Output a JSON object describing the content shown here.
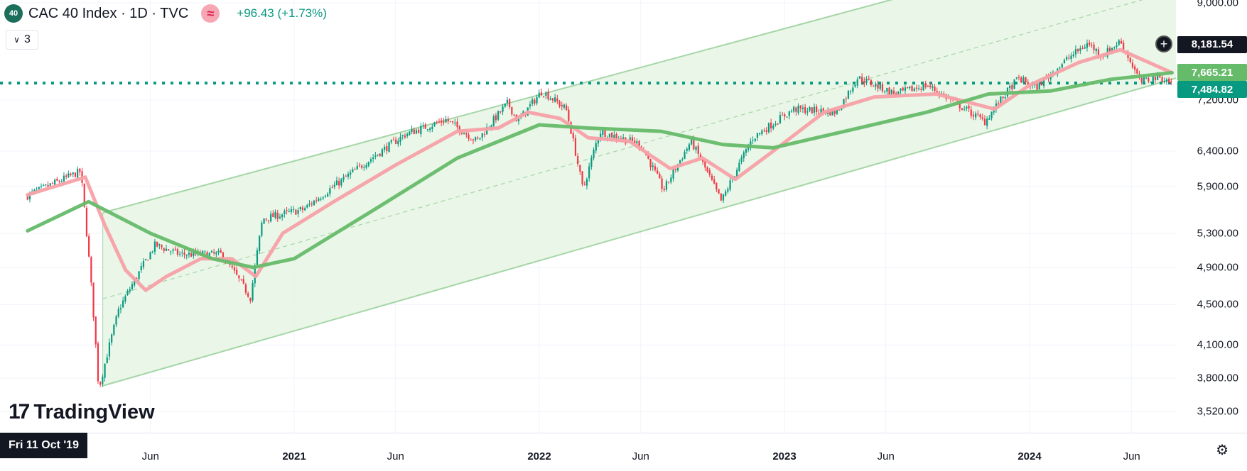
{
  "header": {
    "symbol_badge": "40",
    "title": "CAC 40 Index · 1D · TVC",
    "approx_icon": "≈",
    "change": "+96.43 (+1.73%)",
    "indicator_count": "3"
  },
  "logo": {
    "text": "TradingView",
    "icon": "tradingview-logo"
  },
  "crosshair_date": "Fri 11 Oct '19",
  "price_tags": {
    "crosshair": "8,181.54",
    "ma_short": "7,665.21",
    "last_price": "7,484.82"
  },
  "colors": {
    "up": "#089981",
    "down": "#f23645",
    "ma_short": "#f7a1a8",
    "ma_long": "#66bb6a",
    "channel_fill": "#e6f4e3",
    "channel_line": "#a5d6a7",
    "dotted_line": "#089981",
    "crosshair_tag": "#131722"
  },
  "chart_data": {
    "type": "candlestick",
    "title": "CAC 40 Index · 1D · TVC",
    "y_axis_ticks": [
      9000,
      7200,
      6400,
      5900,
      5300,
      4900,
      4500,
      4100,
      3800,
      3520
    ],
    "y_tick_labels": [
      "9,000.00",
      "7,200.00",
      "6,400.00",
      "5,900.00",
      "5,300.00",
      "4,900.00",
      "4,500.00",
      "4,100.00",
      "3,800.00",
      "3,520.00"
    ],
    "x_axis_labels": [
      {
        "label": "Jun",
        "year": false
      },
      {
        "label": "2021",
        "year": true
      },
      {
        "label": "Jun",
        "year": false
      },
      {
        "label": "2022",
        "year": true
      },
      {
        "label": "Jun",
        "year": false
      },
      {
        "label": "2023",
        "year": true
      },
      {
        "label": "Jun",
        "year": false
      },
      {
        "label": "2024",
        "year": true
      },
      {
        "label": "Jun",
        "year": false
      }
    ],
    "price_path": [
      [
        "2019-12-01",
        5780
      ],
      [
        "2020-02-18",
        6110
      ],
      [
        "2020-03-16",
        3700
      ],
      [
        "2020-04-15",
        4450
      ],
      [
        "2020-06-08",
        5160
      ],
      [
        "2020-07-15",
        5050
      ],
      [
        "2020-09-15",
        5050
      ],
      [
        "2020-10-28",
        4570
      ],
      [
        "2020-11-15",
        5480
      ],
      [
        "2021-01-15",
        5600
      ],
      [
        "2021-03-15",
        6000
      ],
      [
        "2021-06-15",
        6650
      ],
      [
        "2021-08-15",
        6880
      ],
      [
        "2021-09-30",
        6550
      ],
      [
        "2021-11-15",
        7150
      ],
      [
        "2021-11-30",
        6850
      ],
      [
        "2022-01-05",
        7350
      ],
      [
        "2022-02-10",
        7050
      ],
      [
        "2022-03-07",
        5850
      ],
      [
        "2022-04-01",
        6700
      ],
      [
        "2022-06-01",
        6500
      ],
      [
        "2022-07-05",
        5850
      ],
      [
        "2022-08-15",
        6550
      ],
      [
        "2022-09-29",
        5700
      ],
      [
        "2022-11-15",
        6600
      ],
      [
        "2023-01-15",
        7050
      ],
      [
        "2023-03-20",
        7000
      ],
      [
        "2023-04-20",
        7580
      ],
      [
        "2023-06-15",
        7300
      ],
      [
        "2023-08-01",
        7450
      ],
      [
        "2023-10-26",
        6850
      ],
      [
        "2023-12-15",
        7570
      ],
      [
        "2024-01-10",
        7400
      ],
      [
        "2024-03-01",
        7950
      ],
      [
        "2024-03-28",
        8200
      ],
      [
        "2024-04-18",
        7970
      ],
      [
        "2024-05-15",
        8240
      ],
      [
        "2024-06-14",
        7500
      ],
      [
        "2024-07-10",
        7600
      ],
      [
        "2024-07-31",
        7484.82
      ]
    ],
    "series": [
      {
        "name": "",
        "points": [
          [
            "2019-12-01",
            5790
          ],
          [
            "2020-02-25",
            6030
          ],
          [
            "2020-03-25",
            5400
          ],
          [
            "2020-04-25",
            4870
          ],
          [
            "2020-05-25",
            4650
          ],
          [
            "2020-06-25",
            4800
          ],
          [
            "2020-08-15",
            5000
          ],
          [
            "2020-09-30",
            5000
          ],
          [
            "2020-11-05",
            4800
          ],
          [
            "2020-12-15",
            5300
          ],
          [
            "2021-03-01",
            5700
          ],
          [
            "2021-06-01",
            6200
          ],
          [
            "2021-09-01",
            6700
          ],
          [
            "2021-11-01",
            6750
          ],
          [
            "2021-12-15",
            7000
          ],
          [
            "2022-02-01",
            6900
          ],
          [
            "2022-03-15",
            6600
          ],
          [
            "2022-05-15",
            6550
          ],
          [
            "2022-07-15",
            6150
          ],
          [
            "2022-09-01",
            6300
          ],
          [
            "2022-10-20",
            6000
          ],
          [
            "2022-12-15",
            6400
          ],
          [
            "2023-03-01",
            7000
          ],
          [
            "2023-05-15",
            7250
          ],
          [
            "2023-08-15",
            7300
          ],
          [
            "2023-11-10",
            7050
          ],
          [
            "2024-01-01",
            7450
          ],
          [
            "2024-03-15",
            7850
          ],
          [
            "2024-05-15",
            8080
          ],
          [
            "2024-07-31",
            7665.21
          ]
        ]
      },
      {
        "name": "",
        "points": [
          [
            "2019-12-01",
            5330
          ],
          [
            "2020-03-01",
            5700
          ],
          [
            "2020-06-01",
            5300
          ],
          [
            "2020-09-01",
            5000
          ],
          [
            "2020-11-01",
            4900
          ],
          [
            "2021-01-01",
            5000
          ],
          [
            "2021-05-01",
            5600
          ],
          [
            "2021-09-01",
            6300
          ],
          [
            "2022-01-01",
            6800
          ],
          [
            "2022-03-15",
            6750
          ],
          [
            "2022-07-01",
            6700
          ],
          [
            "2022-10-01",
            6500
          ],
          [
            "2022-12-15",
            6450
          ],
          [
            "2023-04-01",
            6700
          ],
          [
            "2023-08-01",
            7000
          ],
          [
            "2023-11-01",
            7300
          ],
          [
            "2024-02-01",
            7350
          ],
          [
            "2024-05-01",
            7550
          ],
          [
            "2024-07-31",
            7665.21
          ]
        ]
      }
    ],
    "channel": {
      "upper": [
        [
          "2020-04-01",
          5580
        ],
        [
          "2023-07-15",
          9200
        ]
      ],
      "middle": [
        [
          "2020-04-01",
          4580
        ],
        [
          "2024-06-01",
          9000
        ]
      ],
      "lower": [
        [
          "2020-04-01",
          3750
        ],
        [
          "2024-08-15",
          7600
        ]
      ],
      "start": "2020-03-22"
    },
    "horizontal_level": 7484.82,
    "grid": true,
    "legend": "none"
  }
}
